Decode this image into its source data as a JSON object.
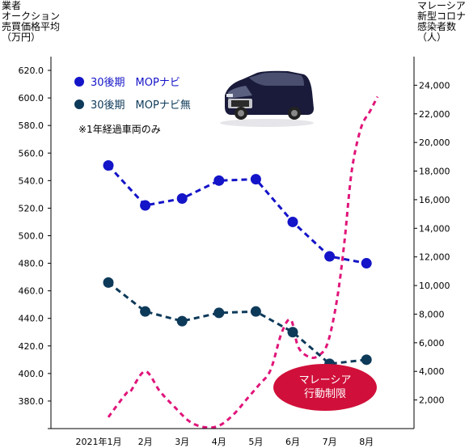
{
  "left_axis_title": [
    "業者",
    "オークション",
    "売買価格平均",
    "（万円）"
  ],
  "right_axis_title": [
    "マレーシア",
    "新型コロナ",
    "感染者数",
    "（人）"
  ],
  "legend": [
    {
      "label": "30後期　MOPナビ",
      "color": "#1414c8"
    },
    {
      "label": "30後期　MOPナビ無",
      "color": "#0e3a5a"
    }
  ],
  "note": "※1年経過車両のみ",
  "badge": {
    "line1": "マレーシア",
    "line2": "行動制限",
    "color": "#d0103a"
  },
  "car_image": "black-minivan-photo",
  "chart_data": {
    "type": "line",
    "categories": [
      "2021年1月",
      "2月",
      "3月",
      "4月",
      "5月",
      "6月",
      "7月",
      "8月"
    ],
    "left_axis": {
      "ylim": [
        360,
        630
      ],
      "ticks": [
        380.0,
        400.0,
        420.0,
        440.0,
        460.0,
        480.0,
        500.0,
        520.0,
        540.0,
        560.0,
        580.0,
        600.0,
        620.0
      ],
      "tick_labels": [
        "380.0",
        "400.0",
        "420.0",
        "440.0",
        "460.0",
        "480.0",
        "500.0",
        "520.0",
        "540.0",
        "560.0",
        "580.0",
        "600.0",
        "620.0"
      ]
    },
    "right_axis": {
      "ylim": [
        0,
        26000
      ],
      "ticks": [
        2000,
        4000,
        6000,
        8000,
        10000,
        12000,
        14000,
        16000,
        18000,
        20000,
        22000,
        24000
      ],
      "tick_labels": [
        "2,000",
        "4,000",
        "6,000",
        "8,000",
        "10,000",
        "12,000",
        "14,000",
        "16,000",
        "18,000",
        "20,000",
        "22,000",
        "24,000"
      ]
    },
    "series": [
      {
        "name": "30後期　MOPナビ",
        "axis": "left",
        "color": "#1414c8",
        "values": [
          551,
          522,
          527,
          540,
          541,
          510,
          485,
          480
        ]
      },
      {
        "name": "30後期　MOPナビ無",
        "axis": "left",
        "color": "#0e3a5a",
        "values": [
          466,
          445,
          438,
          444,
          445,
          430,
          407,
          410
        ]
      },
      {
        "axis": "right",
        "color": "#e0157a",
        "x": [
          0,
          0.2,
          0.5,
          0.6,
          1,
          1.4,
          1.8,
          2.2,
          2.6,
          3,
          3.4,
          3.8,
          4.1,
          4.4,
          4.7,
          4.95,
          5.15,
          5.45,
          5.7,
          5.95,
          6.2,
          6.4,
          6.6,
          6.85,
          7.1,
          7.3
        ],
        "values": [
          800,
          1500,
          2500,
          2600,
          4000,
          2600,
          1500,
          500,
          100,
          200,
          1000,
          2200,
          3100,
          4100,
          6700,
          7600,
          5700,
          5000,
          5100,
          6000,
          9000,
          13000,
          18000,
          21000,
          22200,
          23200
        ]
      }
    ]
  }
}
